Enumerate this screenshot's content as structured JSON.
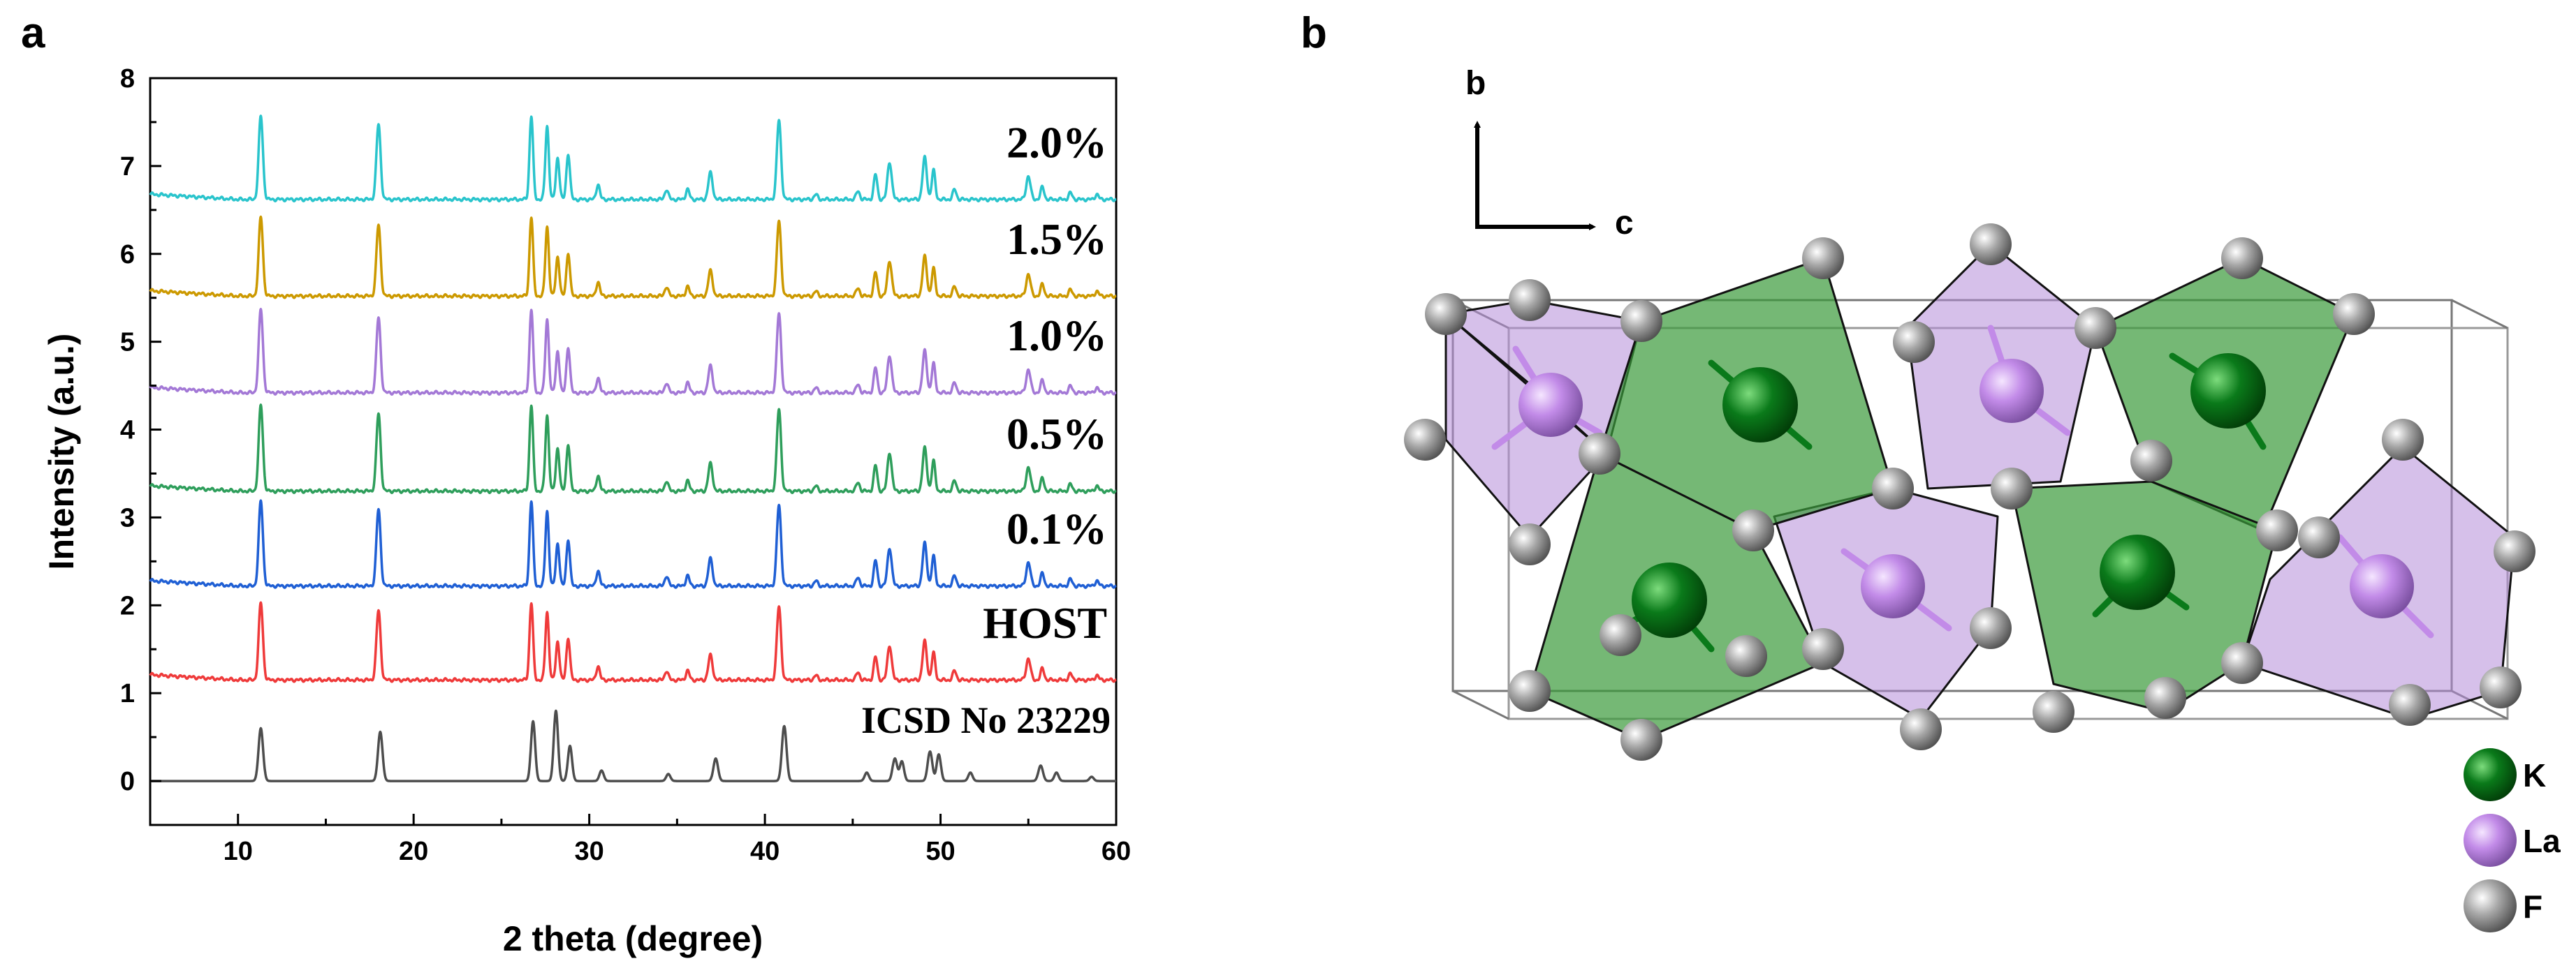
{
  "panel_a_label": "a",
  "panel_b_label": "b",
  "chart_data": {
    "type": "line",
    "xlabel": "2 theta (degree)",
    "ylabel": "Intensity (a.u.)",
    "xlim": [
      5,
      60
    ],
    "ylim": [
      -0.5,
      8
    ],
    "x_ticks": [
      10,
      20,
      30,
      40,
      50,
      60
    ],
    "y_ticks": [
      0,
      1,
      2,
      3,
      4,
      5,
      6,
      7,
      8
    ],
    "grid": false,
    "peaks": [
      [
        11.3,
        1.0,
        0.12
      ],
      [
        18.0,
        0.9,
        0.12
      ],
      [
        26.7,
        1.0,
        0.1
      ],
      [
        27.6,
        0.88,
        0.1
      ],
      [
        28.2,
        0.5,
        0.1
      ],
      [
        28.8,
        0.55,
        0.1
      ],
      [
        30.5,
        0.18,
        0.1
      ],
      [
        34.4,
        0.12,
        0.1
      ],
      [
        35.6,
        0.12,
        0.1
      ],
      [
        36.9,
        0.32,
        0.12
      ],
      [
        40.8,
        0.95,
        0.12
      ],
      [
        42.9,
        0.06,
        0.1
      ],
      [
        45.3,
        0.1,
        0.1
      ],
      [
        46.3,
        0.3,
        0.1
      ],
      [
        47.1,
        0.45,
        0.12
      ],
      [
        49.1,
        0.5,
        0.12
      ],
      [
        49.6,
        0.35,
        0.1
      ],
      [
        50.8,
        0.12,
        0.1
      ],
      [
        55.0,
        0.28,
        0.12
      ],
      [
        55.8,
        0.15,
        0.1
      ],
      [
        57.4,
        0.08,
        0.1
      ],
      [
        58.9,
        0.06,
        0.1
      ]
    ],
    "reference_peaks": [
      [
        11.3,
        0.75,
        0.13
      ],
      [
        18.1,
        0.7,
        0.13
      ],
      [
        26.8,
        0.85,
        0.12
      ],
      [
        28.1,
        1.0,
        0.12
      ],
      [
        28.9,
        0.5,
        0.12
      ],
      [
        30.7,
        0.15,
        0.12
      ],
      [
        34.5,
        0.1,
        0.12
      ],
      [
        37.2,
        0.32,
        0.13
      ],
      [
        41.1,
        0.78,
        0.13
      ],
      [
        45.8,
        0.12,
        0.12
      ],
      [
        47.4,
        0.32,
        0.13
      ],
      [
        47.8,
        0.28,
        0.12
      ],
      [
        49.4,
        0.42,
        0.13
      ],
      [
        49.9,
        0.38,
        0.12
      ],
      [
        51.7,
        0.12,
        0.12
      ],
      [
        55.7,
        0.22,
        0.13
      ],
      [
        56.6,
        0.12,
        0.12
      ],
      [
        58.6,
        0.06,
        0.12
      ]
    ],
    "series": [
      {
        "name": "ICSD No 23229",
        "color": "#4d4d4d",
        "baseline": 0.0,
        "peak_height": 0.8,
        "reference": true
      },
      {
        "name": "HOST",
        "color": "#ef3a3a",
        "baseline": 1.15,
        "peak_height": 0.88
      },
      {
        "name": "0.1%",
        "color": "#1f5fd4",
        "baseline": 2.22,
        "peak_height": 0.97
      },
      {
        "name": "0.5%",
        "color": "#2e9e5b",
        "baseline": 3.3,
        "peak_height": 0.98
      },
      {
        "name": "1.0%",
        "color": "#a378d6",
        "baseline": 4.42,
        "peak_height": 0.95
      },
      {
        "name": "1.5%",
        "color": "#cc9900",
        "baseline": 5.52,
        "peak_height": 0.9
      },
      {
        "name": "2.0%",
        "color": "#29c4cc",
        "baseline": 6.62,
        "peak_height": 0.95
      }
    ]
  },
  "crystal": {
    "axis_b": "b",
    "axis_c": "c",
    "colors": {
      "K": "#0a7a1a",
      "La": "#c28be8",
      "F": "#8a8a8a",
      "k_poly": "#3a9a3a",
      "la_poly": "#b48cd8"
    },
    "legend": [
      {
        "label": "K",
        "color": "#0a7a1a"
      },
      {
        "label": "La",
        "color": "#c28be8"
      },
      {
        "label": "F",
        "color": "#8a8a8a"
      }
    ]
  }
}
